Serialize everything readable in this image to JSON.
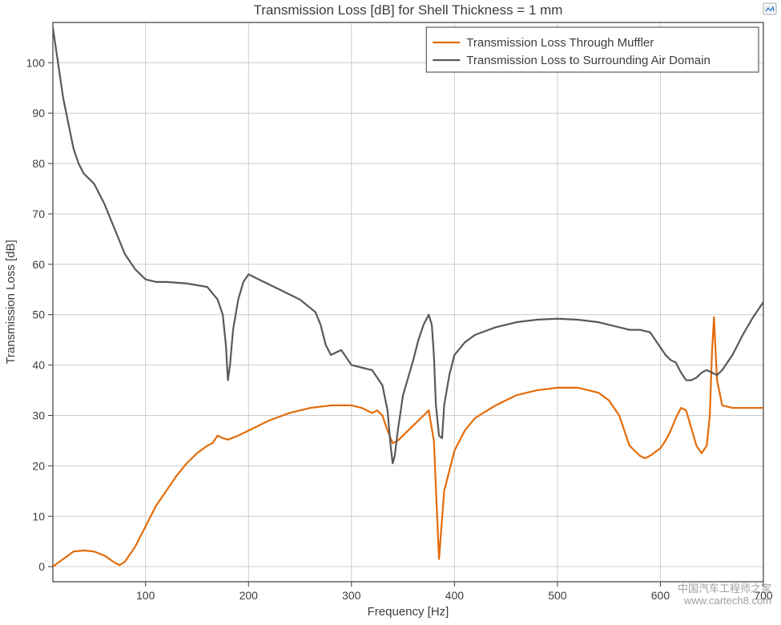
{
  "chart": {
    "type": "line",
    "title": "Transmission Loss [dB] for Shell Thickness = 1 mm",
    "title_fontsize": 17,
    "xlabel": "Frequency [Hz]",
    "ylabel": "Transmission Loss [dB]",
    "label_fontsize": 15,
    "tick_fontsize": 14,
    "xlim": [
      10,
      700
    ],
    "ylim": [
      -3,
      108
    ],
    "xtick_start": 100,
    "xtick_step": 100,
    "ytick_start": 0,
    "ytick_step": 10,
    "background_color": "#ffffff",
    "grid_color": "#cccccc",
    "axis_color": "#3c3c3c",
    "line_width": 2.2,
    "series": [
      {
        "name": "Transmission Loss Through Muffler",
        "color": "#e36c0a",
        "x": [
          10,
          20,
          30,
          40,
          50,
          60,
          70,
          75,
          80,
          90,
          100,
          110,
          120,
          130,
          140,
          150,
          160,
          165,
          170,
          175,
          180,
          190,
          200,
          220,
          240,
          260,
          280,
          300,
          310,
          320,
          325,
          330,
          335,
          340,
          345,
          350,
          360,
          370,
          375,
          380,
          385,
          390,
          400,
          410,
          420,
          440,
          460,
          480,
          500,
          520,
          540,
          550,
          560,
          565,
          570,
          575,
          580,
          585,
          590,
          600,
          605,
          610,
          615,
          620,
          625,
          630,
          635,
          640,
          645,
          648,
          650,
          652,
          655,
          660,
          670,
          680,
          690,
          700
        ],
        "y": [
          0,
          1.5,
          3,
          3.2,
          3,
          2.2,
          0.8,
          0.3,
          1,
          4,
          8,
          12,
          15,
          18,
          20.5,
          22.5,
          24,
          24.5,
          26,
          25.5,
          25.2,
          26,
          27,
          29,
          30.5,
          31.5,
          32,
          32,
          31.5,
          30.5,
          31,
          30,
          27,
          24.5,
          25,
          26,
          28,
          30,
          31,
          25,
          1.5,
          15,
          23,
          27,
          29.5,
          32,
          34,
          35,
          35.5,
          35.5,
          34.5,
          33,
          30,
          27,
          24,
          23,
          22,
          21.5,
          22,
          23.5,
          25,
          27,
          29.5,
          31.5,
          31,
          27.5,
          24,
          22.5,
          24,
          30,
          42,
          49.5,
          37,
          32,
          31.5,
          31.5,
          31.5,
          31.5
        ]
      },
      {
        "name": "Transmission Loss to Surrounding Air Domain",
        "color": "#595959",
        "x": [
          10,
          15,
          20,
          25,
          30,
          35,
          40,
          45,
          50,
          55,
          60,
          70,
          80,
          90,
          100,
          110,
          120,
          140,
          160,
          170,
          175,
          178,
          180,
          182,
          185,
          190,
          195,
          200,
          210,
          230,
          250,
          265,
          270,
          275,
          280,
          285,
          290,
          295,
          300,
          310,
          320,
          330,
          335,
          338,
          340,
          342,
          345,
          350,
          360,
          365,
          370,
          375,
          378,
          380,
          382,
          385,
          388,
          390,
          395,
          400,
          410,
          420,
          440,
          460,
          480,
          500,
          520,
          540,
          550,
          560,
          570,
          580,
          590,
          595,
          600,
          605,
          610,
          615,
          620,
          625,
          630,
          635,
          640,
          645,
          650,
          655,
          660,
          670,
          680,
          690,
          700
        ],
        "y": [
          107,
          100,
          93,
          88,
          83,
          80,
          78,
          77,
          76,
          74,
          72,
          67,
          62,
          59,
          57,
          56.5,
          56.5,
          56.2,
          55.5,
          53,
          50,
          44,
          37,
          40,
          47,
          53,
          56.5,
          58,
          57,
          55,
          53,
          50.5,
          48,
          44,
          42,
          42.5,
          43,
          41.5,
          40,
          39.5,
          39,
          36,
          31,
          24,
          20.5,
          22,
          27,
          34,
          41,
          45,
          48,
          50,
          48,
          42,
          32,
          26,
          25.5,
          32,
          38,
          42,
          44.5,
          46,
          47.5,
          48.5,
          49,
          49.2,
          49,
          48.5,
          48,
          47.5,
          47,
          47,
          46.5,
          45,
          43.5,
          42,
          41,
          40.5,
          38.5,
          37,
          37,
          37.5,
          38.5,
          39,
          38.5,
          38,
          39,
          42,
          46,
          49.5,
          52.5
        ]
      }
    ],
    "legend": {
      "position": "top-right-inside",
      "border_color": "#3c3c3c",
      "bg_color": "#ffffff",
      "fontsize": 15,
      "line_length": 34
    }
  },
  "corner_icon": {
    "bg": "#ffffff",
    "border": "#888888",
    "accent": "#2a6cc0"
  },
  "watermark": {
    "line1": "中国汽车工程师之家",
    "line2": "www.cartech8.com",
    "color": "rgba(80,80,80,0.55)",
    "fontsize": 13
  }
}
